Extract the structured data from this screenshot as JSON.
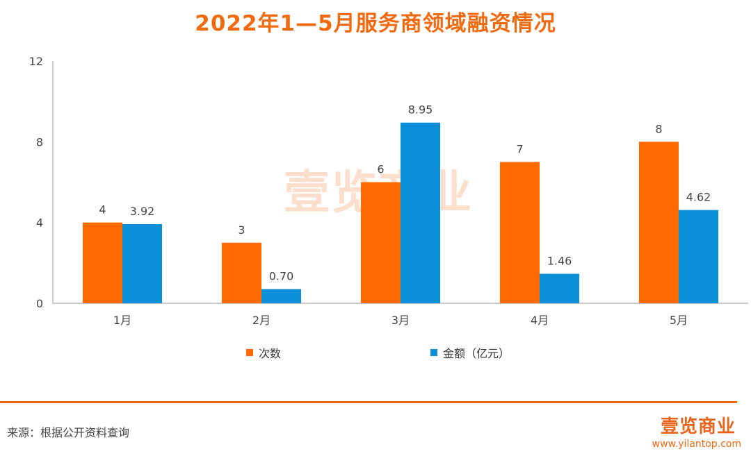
{
  "chart_data": {
    "type": "bar",
    "title": "2022年1—5月服务商领域融资情况",
    "categories": [
      "1月",
      "2月",
      "3月",
      "4月",
      "5月"
    ],
    "series": [
      {
        "name": "次数",
        "values": [
          4,
          3,
          6,
          7,
          8
        ],
        "labels": [
          "4",
          "3",
          "6",
          "7",
          "8"
        ],
        "color": "#ff6a00"
      },
      {
        "name": "金额（亿元）",
        "values": [
          3.92,
          0.7,
          8.95,
          1.46,
          4.62
        ],
        "labels": [
          "3.92",
          "0.70",
          "8.95",
          "1.46",
          "4.62"
        ],
        "color": "#0a8fd8"
      }
    ],
    "yticks": [
      0,
      4,
      8,
      12
    ],
    "ylim": [
      0,
      12
    ],
    "xlabel": "",
    "ylabel": "",
    "grid": false,
    "legend_position": "bottom"
  },
  "footer": {
    "source": "来源：根据公开资料查询",
    "logo": "壹览商业",
    "url": "www.yilantop.com"
  },
  "watermark": "壹览商业"
}
